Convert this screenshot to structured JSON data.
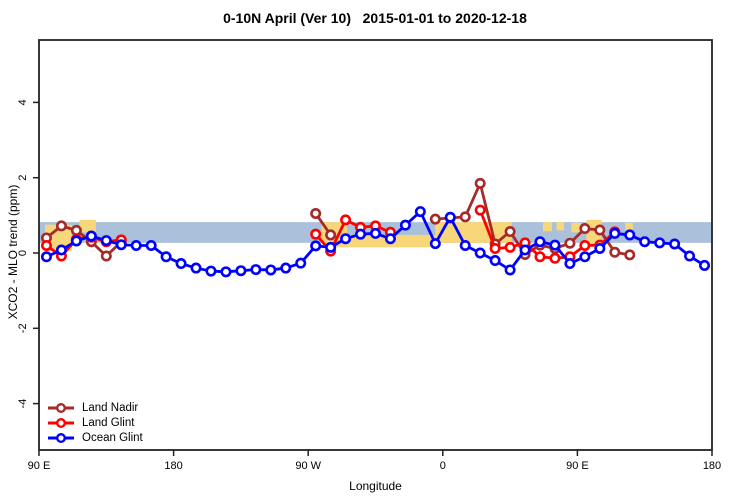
{
  "chart_data": {
    "type": "line",
    "title": "0-10N April (Ver 10)   2015-01-01 to 2020-12-18",
    "xlabel": "Longitude",
    "ylabel": "XCO2 - MLO trend (ppm)",
    "x_axis": {
      "note": "longitude axis starts at 90E on the left and wraps eastward: 90E > 180 > 90W > 0 > 90E > 180; positions below are degrees east of 90E (0-450)",
      "range_deg": [
        0,
        450
      ],
      "ticks_deg": [
        0,
        90,
        180,
        270,
        360,
        450
      ],
      "tick_labels": [
        "90 E",
        "180",
        "90 W",
        "0",
        "90 E",
        "180"
      ]
    },
    "y_axis": {
      "range_ppm": [
        -5.25,
        5.65
      ],
      "ticks": [
        -4,
        -2,
        0,
        2,
        4
      ],
      "tick_labels": [
        "-4",
        "-2",
        "0",
        "2",
        "4"
      ]
    },
    "grid": "off",
    "legend_position": "bottom-left",
    "bands": {
      "blue_band": {
        "color": "#ABC0DA",
        "x_range_deg": [
          0,
          450
        ],
        "y_range_ppm": [
          0.27,
          0.82
        ]
      },
      "yellow_patches": {
        "color": "#F8D77B",
        "rects_deg_ppm": [
          [
            4,
            22,
            0.05,
            0.75
          ],
          [
            27,
            38,
            0.55,
            0.88
          ],
          [
            189,
            206,
            0.15,
            0.82
          ],
          [
            206,
            265,
            0.15,
            0.48
          ],
          [
            265,
            316,
            0.27,
            0.82
          ],
          [
            337,
            343,
            0.58,
            0.82
          ],
          [
            346,
            351,
            0.6,
            0.82
          ],
          [
            356,
            362,
            0.55,
            0.8
          ],
          [
            366,
            376,
            0.2,
            0.88
          ],
          [
            392,
            397,
            0.58,
            0.8
          ]
        ]
      }
    },
    "series": [
      {
        "name": "Land Nadir",
        "color": "#A52A2A",
        "marker": "open-circle",
        "segments": [
          [
            [
              5,
              0.4
            ],
            [
              15,
              0.72
            ],
            [
              25,
              0.6
            ],
            [
              35,
              0.3
            ],
            [
              45,
              -0.08
            ],
            [
              55,
              0.3
            ]
          ],
          [
            [
              185,
              1.05
            ],
            [
              195,
              0.48
            ]
          ],
          [
            [
              265,
              0.9
            ],
            [
              275,
              0.93
            ],
            [
              285,
              0.96
            ],
            [
              295,
              1.85
            ],
            [
              305,
              0.24
            ],
            [
              315,
              0.57
            ],
            [
              325,
              -0.04
            ],
            [
              335,
              0.21
            ],
            [
              345,
              0.12
            ],
            [
              355,
              0.26
            ],
            [
              365,
              0.65
            ],
            [
              375,
              0.61
            ],
            [
              385,
              0.02
            ],
            [
              395,
              -0.05
            ]
          ]
        ]
      },
      {
        "name": "Land Glint",
        "color": "#FF0000",
        "marker": "open-circle",
        "segments": [
          [
            [
              5,
              0.2
            ],
            [
              15,
              -0.08
            ],
            [
              25,
              0.36
            ],
            [
              35,
              0.42
            ],
            [
              45,
              0.3
            ],
            [
              55,
              0.35
            ]
          ],
          [
            [
              185,
              0.5
            ],
            [
              195,
              0.05
            ],
            [
              205,
              0.88
            ],
            [
              215,
              0.68
            ],
            [
              225,
              0.72
            ],
            [
              235,
              0.55
            ]
          ],
          [
            [
              295,
              1.14
            ],
            [
              305,
              0.12
            ],
            [
              315,
              0.15
            ],
            [
              325,
              0.27
            ],
            [
              335,
              -0.1
            ],
            [
              345,
              -0.14
            ],
            [
              355,
              -0.1
            ],
            [
              365,
              0.2
            ],
            [
              375,
              0.21
            ],
            [
              385,
              0.56
            ]
          ]
        ]
      },
      {
        "name": "Ocean Glint",
        "color": "#0000FF",
        "marker": "open-circle",
        "segments": [
          [
            [
              5,
              -0.1
            ],
            [
              15,
              0.08
            ],
            [
              25,
              0.32
            ],
            [
              35,
              0.45
            ],
            [
              45,
              0.33
            ],
            [
              55,
              0.22
            ],
            [
              65,
              0.2
            ],
            [
              75,
              0.2
            ],
            [
              85,
              -0.1
            ],
            [
              95,
              -0.28
            ],
            [
              105,
              -0.4
            ],
            [
              115,
              -0.48
            ],
            [
              125,
              -0.5
            ],
            [
              135,
              -0.47
            ],
            [
              145,
              -0.44
            ],
            [
              155,
              -0.45
            ],
            [
              165,
              -0.4
            ],
            [
              175,
              -0.27
            ],
            [
              185,
              0.19
            ],
            [
              195,
              0.15
            ],
            [
              205,
              0.38
            ],
            [
              215,
              0.5
            ],
            [
              225,
              0.52
            ],
            [
              235,
              0.38
            ],
            [
              245,
              0.74
            ],
            [
              255,
              1.1
            ],
            [
              265,
              0.25
            ],
            [
              275,
              0.95
            ],
            [
              285,
              0.2
            ],
            [
              295,
              0.0
            ],
            [
              305,
              -0.2
            ],
            [
              315,
              -0.45
            ],
            [
              325,
              0.08
            ],
            [
              335,
              0.3
            ],
            [
              345,
              0.21
            ],
            [
              355,
              -0.28
            ],
            [
              365,
              -0.1
            ],
            [
              375,
              0.12
            ],
            [
              385,
              0.52
            ],
            [
              395,
              0.48
            ],
            [
              405,
              0.3
            ],
            [
              415,
              0.27
            ],
            [
              425,
              0.24
            ],
            [
              435,
              -0.08
            ],
            [
              445,
              -0.33
            ]
          ]
        ]
      }
    ]
  }
}
